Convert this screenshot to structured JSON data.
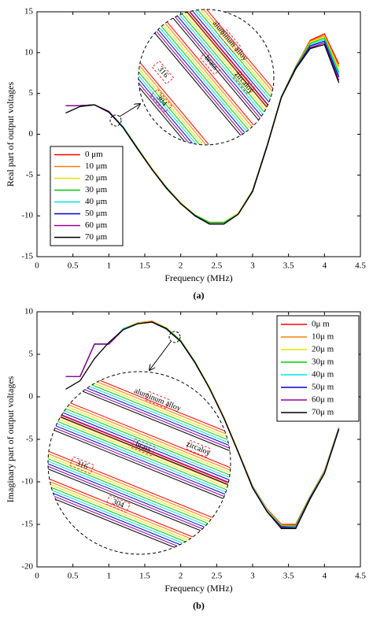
{
  "chart_data": [
    {
      "type": "line",
      "caption": "(a)",
      "x_label": "Frequency (MHz)",
      "y_label": "Real part of output voltages",
      "x": [
        0.4,
        0.6,
        0.8,
        1.0,
        1.2,
        1.4,
        1.6,
        1.8,
        2.0,
        2.2,
        2.4,
        2.6,
        2.8,
        3.0,
        3.2,
        3.4,
        3.6,
        3.8,
        4.0,
        4.2
      ],
      "xlim": [
        0,
        4.5
      ],
      "xticks": [
        0,
        0.5,
        1,
        1.5,
        2,
        2.5,
        3,
        3.5,
        4,
        4.5
      ],
      "ylim": [
        -15,
        15
      ],
      "yticks": [
        -15,
        -10,
        -5,
        0,
        5,
        10,
        15
      ],
      "legend": "lower left",
      "annotations": [
        "aluminum alloy",
        "brass",
        "zircaloy",
        "316",
        "304"
      ],
      "series": [
        {
          "name": "0 μm",
          "color": "#ff0000",
          "values": [
            3.5,
            3.5,
            3.6,
            2.8,
            0.9,
            -1.7,
            -4.2,
            -6.5,
            -8.4,
            -9.9,
            -10.8,
            -10.8,
            -9.7,
            -6.9,
            -1.4,
            4.6,
            8.3,
            11.5,
            12.3,
            8.6
          ]
        },
        {
          "name": "10 μm",
          "color": "#ff8000",
          "values": [
            3.5,
            3.5,
            3.6,
            2.8,
            0.9,
            -1.7,
            -4.2,
            -6.5,
            -8.4,
            -9.9,
            -10.8,
            -10.8,
            -9.7,
            -6.9,
            -1.4,
            4.6,
            8.3,
            11.4,
            12.1,
            8.3
          ]
        },
        {
          "name": "20 μm",
          "color": "#e6e600",
          "values": [
            3.5,
            3.5,
            3.6,
            2.8,
            0.9,
            -1.7,
            -4.2,
            -6.5,
            -8.4,
            -9.9,
            -10.8,
            -10.8,
            -9.7,
            -6.9,
            -1.4,
            4.6,
            8.2,
            11.2,
            12.0,
            8.0
          ]
        },
        {
          "name": "30 μm",
          "color": "#00cc00",
          "values": [
            3.5,
            3.5,
            3.6,
            2.8,
            0.9,
            -1.7,
            -4.3,
            -6.5,
            -8.5,
            -9.9,
            -10.8,
            -10.8,
            -9.8,
            -6.9,
            -1.4,
            4.6,
            8.2,
            11.1,
            11.8,
            7.6
          ]
        },
        {
          "name": "40 μm",
          "color": "#00e5e5",
          "values": [
            3.5,
            3.5,
            3.6,
            2.8,
            0.9,
            -1.8,
            -4.3,
            -6.6,
            -8.5,
            -10.0,
            -11.0,
            -11.0,
            -9.8,
            -7.0,
            -1.5,
            4.5,
            8.1,
            10.9,
            11.6,
            7.3
          ]
        },
        {
          "name": "50 μm",
          "color": "#0000cc",
          "values": [
            3.5,
            3.5,
            3.6,
            2.8,
            0.8,
            -1.8,
            -4.3,
            -6.6,
            -8.5,
            -10.0,
            -11.0,
            -11.0,
            -9.8,
            -7.0,
            -1.5,
            4.5,
            8.1,
            10.8,
            11.4,
            7.0
          ]
        },
        {
          "name": "60 μm",
          "color": "#990099",
          "values": [
            3.5,
            3.5,
            3.6,
            2.8,
            0.8,
            -1.8,
            -4.3,
            -6.6,
            -8.5,
            -10.0,
            -11.0,
            -11.0,
            -9.8,
            -7.0,
            -1.5,
            4.5,
            8.0,
            10.6,
            11.2,
            6.6
          ]
        },
        {
          "name": "70 μm",
          "color": "#000000",
          "values": [
            2.6,
            3.4,
            3.6,
            2.7,
            0.8,
            -1.8,
            -4.3,
            -6.6,
            -8.5,
            -10.0,
            -11.0,
            -11.0,
            -9.8,
            -7.0,
            -1.5,
            4.5,
            8.0,
            10.5,
            11.0,
            6.3
          ]
        }
      ]
    },
    {
      "type": "line",
      "caption": "(b)",
      "x_label": "Frequency (MHz)",
      "y_label": "Imaginary part of output voltages",
      "x": [
        0.4,
        0.6,
        0.8,
        1.0,
        1.2,
        1.4,
        1.6,
        1.8,
        2.0,
        2.2,
        2.4,
        2.6,
        2.8,
        3.0,
        3.2,
        3.4,
        3.6,
        3.8,
        4.0,
        4.2
      ],
      "xlim": [
        0,
        4.5
      ],
      "xticks": [
        0,
        0.5,
        1,
        1.5,
        2,
        2.5,
        3,
        3.5,
        4,
        4.5
      ],
      "ylim": [
        -20,
        10
      ],
      "yticks": [
        -20,
        -15,
        -10,
        -5,
        0,
        5,
        10
      ],
      "legend": "upper right",
      "annotations": [
        "aluminum alloy",
        "brass",
        "zircaloy",
        "316",
        "304"
      ],
      "series": [
        {
          "name": "0μ m",
          "color": "#ff0000",
          "values": [
            2.4,
            2.4,
            6.2,
            6.2,
            8.0,
            8.7,
            8.9,
            8.1,
            6.6,
            4.1,
            1.1,
            -2.4,
            -6.4,
            -10.5,
            -13.2,
            -15.0,
            -15.0,
            -11.7,
            -8.7,
            -3.6
          ]
        },
        {
          "name": "10μ m",
          "color": "#ff8000",
          "values": [
            2.4,
            2.4,
            6.2,
            6.2,
            8.0,
            8.7,
            8.9,
            8.1,
            6.6,
            4.1,
            1.1,
            -2.4,
            -6.4,
            -10.5,
            -13.3,
            -15.1,
            -15.1,
            -11.7,
            -8.8,
            -3.6
          ]
        },
        {
          "name": "20μ m",
          "color": "#e6e600",
          "values": [
            2.4,
            2.4,
            6.2,
            6.2,
            8.0,
            8.7,
            8.8,
            8.1,
            6.6,
            4.1,
            1.1,
            -2.4,
            -6.4,
            -10.6,
            -13.3,
            -15.1,
            -15.2,
            -11.8,
            -8.8,
            -3.7
          ]
        },
        {
          "name": "30μ m",
          "color": "#00cc00",
          "values": [
            2.4,
            2.4,
            6.2,
            6.2,
            8.0,
            8.6,
            8.8,
            8.1,
            6.6,
            4.1,
            1.0,
            -2.5,
            -6.5,
            -10.6,
            -13.4,
            -15.2,
            -15.2,
            -11.8,
            -8.9,
            -3.7
          ]
        },
        {
          "name": "40μ m",
          "color": "#00e5e5",
          "values": [
            2.4,
            2.4,
            6.2,
            6.2,
            8.0,
            8.6,
            8.8,
            8.0,
            6.5,
            4.0,
            1.0,
            -2.5,
            -6.5,
            -10.6,
            -13.4,
            -15.3,
            -15.3,
            -11.9,
            -8.9,
            -3.7
          ]
        },
        {
          "name": "50μ m",
          "color": "#0000cc",
          "values": [
            2.4,
            2.4,
            6.2,
            6.2,
            7.9,
            8.6,
            8.8,
            8.0,
            6.5,
            4.0,
            1.0,
            -2.5,
            -6.5,
            -10.7,
            -13.5,
            -15.3,
            -15.4,
            -11.9,
            -9.0,
            -3.8
          ]
        },
        {
          "name": "60μ m",
          "color": "#990099",
          "values": [
            2.4,
            2.4,
            6.2,
            6.2,
            7.9,
            8.6,
            8.8,
            8.0,
            6.5,
            4.0,
            1.0,
            -2.5,
            -6.5,
            -10.7,
            -13.5,
            -15.4,
            -15.4,
            -12.0,
            -9.0,
            -3.8
          ]
        },
        {
          "name": "70μ m",
          "color": "#000000",
          "values": [
            0.9,
            1.9,
            4.5,
            6.4,
            7.9,
            8.6,
            8.8,
            8.0,
            6.5,
            4.0,
            1.0,
            -2.5,
            -6.5,
            -10.7,
            -13.5,
            -15.5,
            -15.5,
            -12.0,
            -9.0,
            -3.8
          ]
        }
      ]
    }
  ]
}
